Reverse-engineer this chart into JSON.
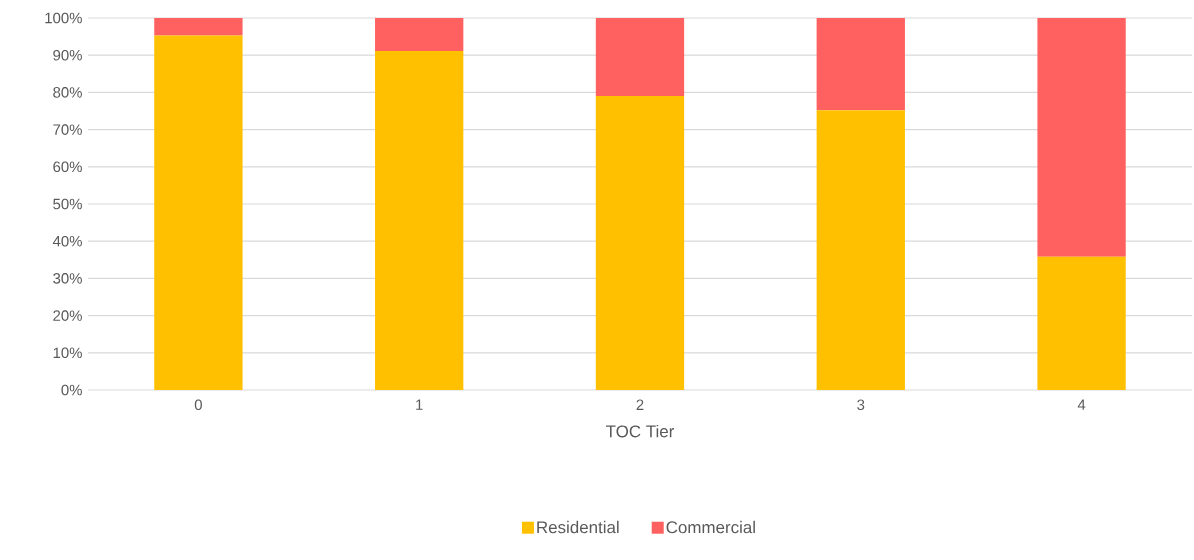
{
  "chart_data": {
    "type": "bar",
    "stacked": true,
    "xlabel": "TOC Tier",
    "categories": [
      "0",
      "1",
      "2",
      "3",
      "4"
    ],
    "series": [
      {
        "name": "Residential",
        "color": "#ffc000",
        "values": [
          95.3,
          91.1,
          79.0,
          75.2,
          35.8
        ]
      },
      {
        "name": "Commercial",
        "color": "#ff6161",
        "values": [
          4.7,
          8.9,
          21.0,
          24.8,
          64.2
        ]
      }
    ],
    "ylim": [
      0,
      100
    ],
    "yticks": [
      {
        "value": 0,
        "label": "0%"
      },
      {
        "value": 10,
        "label": "10%"
      },
      {
        "value": 20,
        "label": "20%"
      },
      {
        "value": 30,
        "label": "30%"
      },
      {
        "value": 40,
        "label": "40%"
      },
      {
        "value": 50,
        "label": "50%"
      },
      {
        "value": 60,
        "label": "60%"
      },
      {
        "value": 70,
        "label": "70%"
      },
      {
        "value": 80,
        "label": "80%"
      },
      {
        "value": 90,
        "label": "90%"
      },
      {
        "value": 100,
        "label": "100%"
      }
    ],
    "grid": "y",
    "legend": "bottom"
  }
}
